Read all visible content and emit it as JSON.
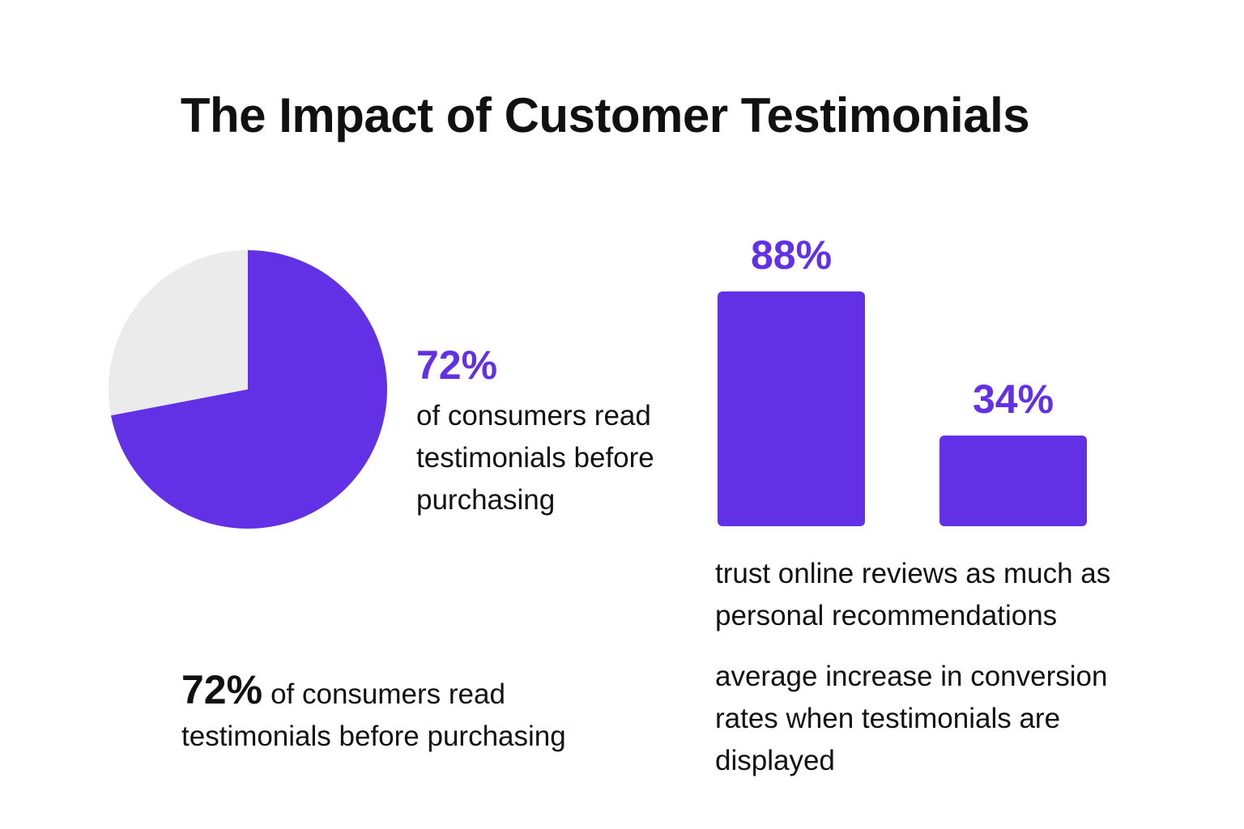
{
  "title": "The Impact of Customer Testimonials",
  "colors": {
    "accent": "#6231E6",
    "remainder": "#EBEBEB"
  },
  "pie_stat": {
    "value": "72%",
    "caption": "of consumers read testimonials before purchasing"
  },
  "footer_stat": {
    "value": "72%",
    "caption": "of consumers read testimonials before purchasing"
  },
  "bar_captions": [
    "trust online reviews as much as personal recommendations",
    "average increase in conversion rates when testimonials are displayed"
  ],
  "chart_data": [
    {
      "type": "pie",
      "slices": [
        {
          "label": "72%",
          "value": 72
        },
        {
          "label": "",
          "value": 28
        }
      ]
    },
    {
      "type": "bar",
      "values": [
        88,
        34
      ],
      "data_labels": [
        "88%",
        "34%"
      ],
      "ylim": [
        0,
        100
      ]
    }
  ]
}
